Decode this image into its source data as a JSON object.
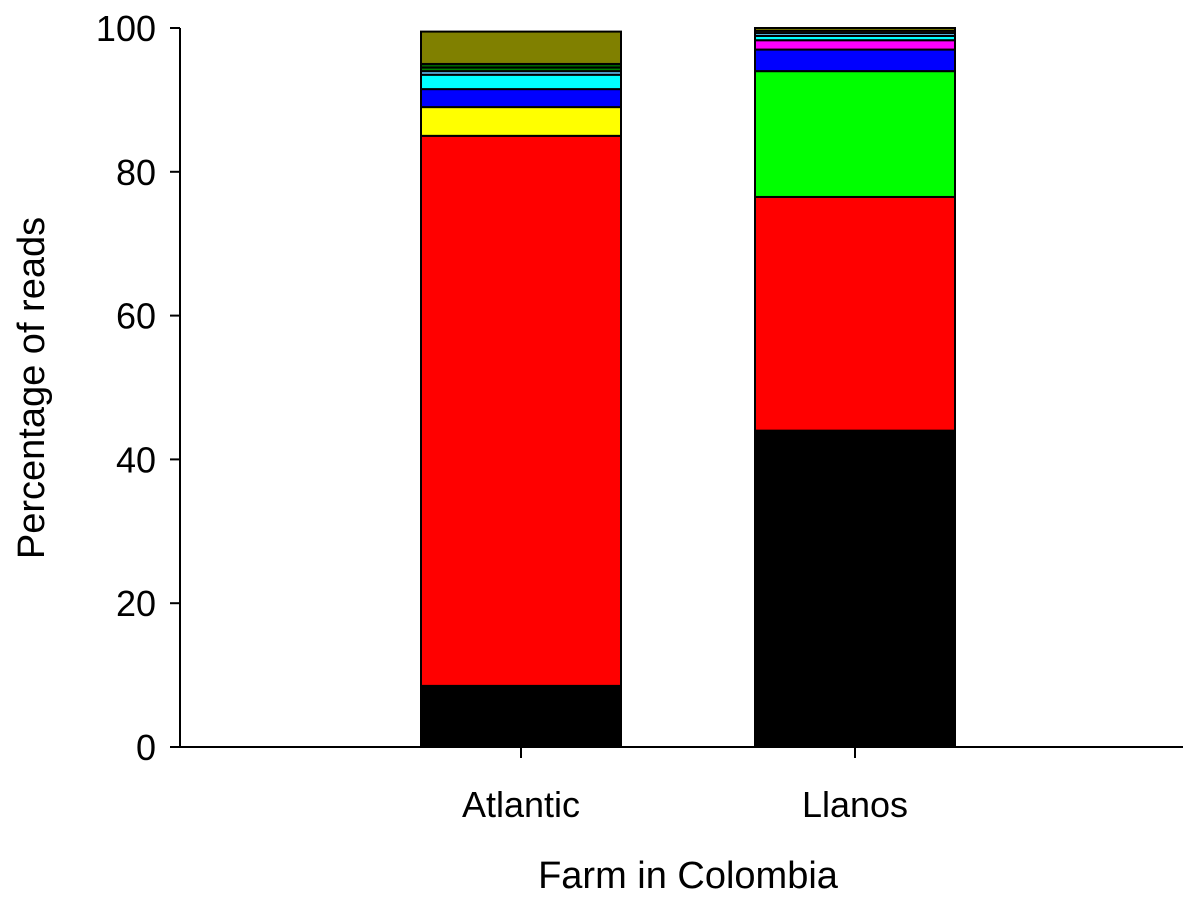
{
  "chart_data": {
    "type": "bar",
    "stacked": true,
    "title": "",
    "xlabel": "Farm in Colombia",
    "ylabel": "Percentage of reads",
    "ylim": [
      0,
      100
    ],
    "yticks": [
      0,
      20,
      40,
      60,
      80,
      100
    ],
    "grid": false,
    "legend": "none",
    "categories": [
      "Atlantic",
      "Llanos"
    ],
    "series": [
      {
        "color": "#000000",
        "values": [
          8.5,
          44.0
        ]
      },
      {
        "color": "#ff0000",
        "values": [
          76.5,
          32.5
        ]
      },
      {
        "color": "#00ff00",
        "values": [
          0.0,
          17.5
        ]
      },
      {
        "color": "#ffff00",
        "values": [
          4.0,
          0.0
        ]
      },
      {
        "color": "#0000ff",
        "values": [
          2.5,
          3.0
        ]
      },
      {
        "color": "#ff00ff",
        "values": [
          0.0,
          1.3
        ]
      },
      {
        "color": "#00ffff",
        "values": [
          2.0,
          0.6
        ]
      },
      {
        "color": "#66ccff",
        "values": [
          0.5,
          0.4
        ]
      },
      {
        "color": "#008000",
        "values": [
          0.5,
          0.0
        ]
      },
      {
        "color": "#006400",
        "values": [
          0.5,
          0.0
        ]
      },
      {
        "color": "#ffffcc",
        "values": [
          0.0,
          0.3
        ]
      },
      {
        "color": "#808000",
        "values": [
          4.5,
          0.4
        ]
      }
    ]
  }
}
